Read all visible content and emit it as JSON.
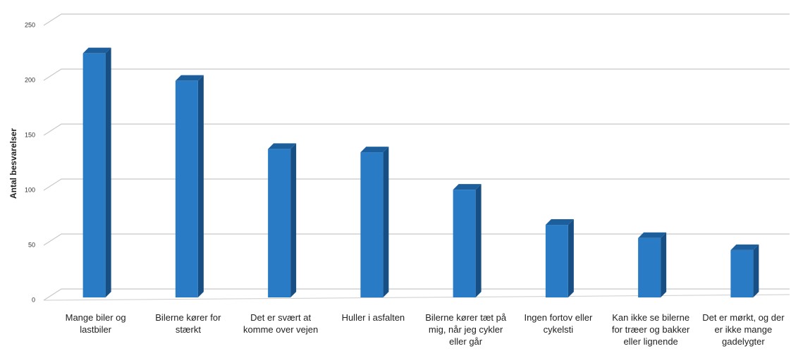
{
  "chart_data": {
    "type": "bar3d",
    "y_label": "Antal besvarelser",
    "categories": [
      "Mange biler og lastbiler",
      "Bilerne kører for stærkt",
      "Det er svært at komme over vejen",
      "Huller i asfalten",
      "Bilerne kører tæt på mig, når jeg cykler eller går",
      "Ingen fortov eller cykelsti",
      "Kan ikke se bilerne for træer og bakker eller lignende",
      "Det er mørkt, og der er ikke mange gadelygter"
    ],
    "values": [
      222,
      197,
      135,
      132,
      98,
      66,
      54,
      43
    ],
    "color": "#2a7bc6",
    "ylim": [
      0,
      250
    ],
    "yticks": [
      0,
      50,
      100,
      150,
      200,
      250
    ],
    "grid": true
  }
}
